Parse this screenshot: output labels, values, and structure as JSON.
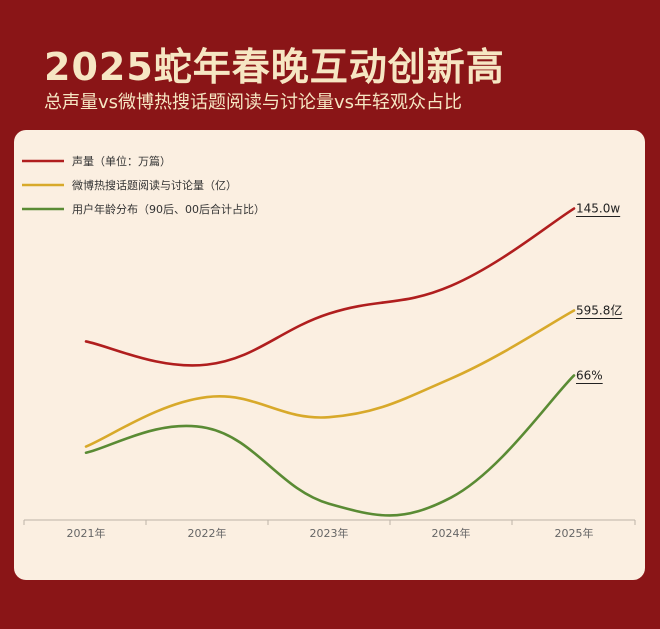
{
  "header": {
    "title": "2025蛇年春晚互动创新高",
    "subtitle": "总声量vs微博热搜话题阅读与讨论量vs年轻观众占比"
  },
  "colors": {
    "background": "#8a1517",
    "card": "#fbefe1",
    "title": "#f6e6c3",
    "series": [
      "#b01e1e",
      "#d8a92a",
      "#5a8b34"
    ]
  },
  "chart_data": {
    "type": "line",
    "categories": [
      "2021年",
      "2022年",
      "2023年",
      "2024年",
      "2025年"
    ],
    "grid": false,
    "legend_placement": "top-left",
    "series": [
      {
        "name": "声量（单位：万篇）",
        "values": [
          0.62,
          0.47,
          0.8,
          0.98,
          1.48
        ],
        "end_label": "145.0w"
      },
      {
        "name": "微博热搜话题阅读与讨论量（亿）",
        "values": [
          -0.06,
          0.26,
          0.13,
          0.38,
          0.82
        ],
        "end_label": "595.8亿"
      },
      {
        "name": "用户年龄分布（90后、00后合计占比）",
        "values": [
          -0.1,
          0.06,
          -0.43,
          -0.39,
          0.4
        ],
        "end_label": "66%"
      }
    ]
  }
}
